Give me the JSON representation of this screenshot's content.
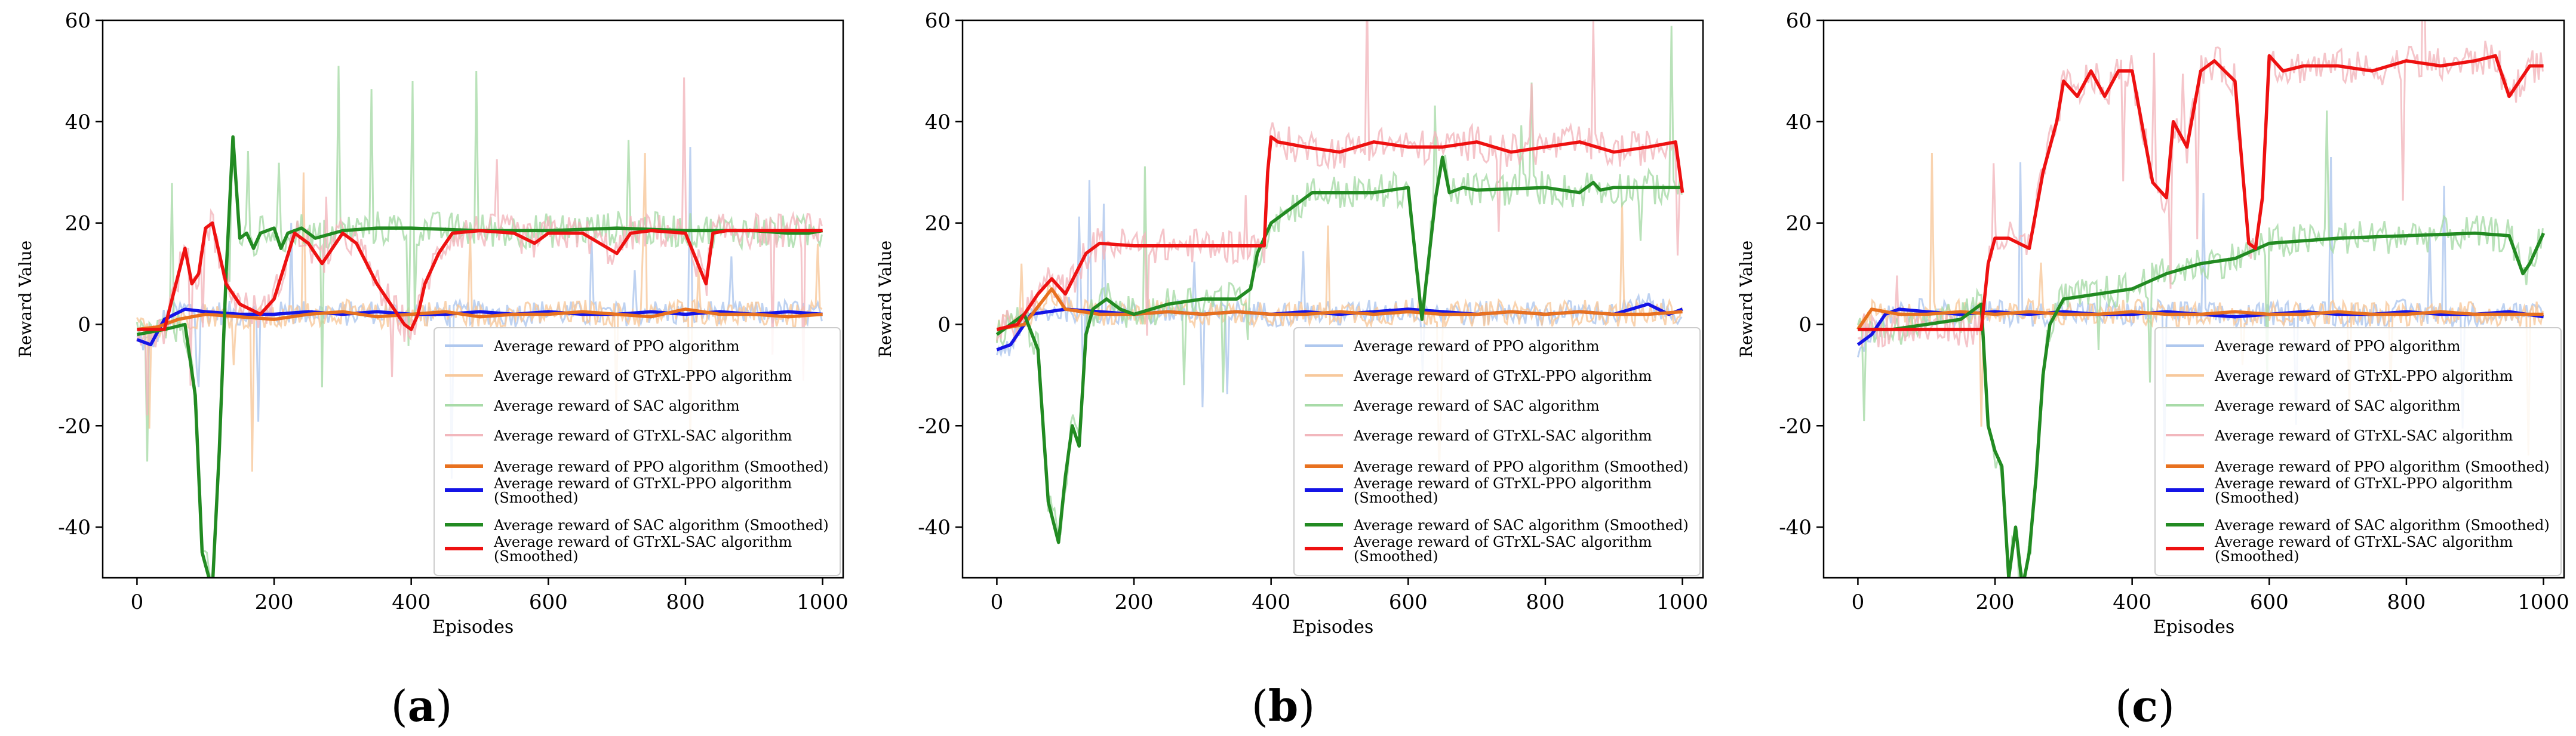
{
  "colors": {
    "ppo": "#e8711f",
    "gtrxl_ppo": "#1414e6",
    "sac": "#228b22",
    "gtrxl_sac": "#ee1111",
    "ppo_raw": "#f7c89b",
    "gtrxl_ppo_raw": "#aec7ee",
    "sac_raw": "#a8dba8",
    "gtrxl_sac_raw": "#f2b7bd"
  },
  "legend_labels": [
    "Average reward of PPO algorithm",
    "Average reward of GTrXL-PPO algorithm",
    "Average reward of SAC algorithm",
    "Average reward of GTrXL-SAC algorithm",
    "Average reward of PPO algorithm (Smoothed)",
    "Average reward of GTrXL-PPO algorithm\n(Smoothed)",
    "Average reward of SAC algorithm (Smoothed)",
    "Average reward of GTrXL-SAC algorithm\n(Smoothed)"
  ],
  "chart_data": [
    {
      "type": "line",
      "caption": "a",
      "xlabel": "Episodes",
      "ylabel": "Reward Value",
      "xlim": [
        -50,
        1030
      ],
      "ylim": [
        -50,
        60
      ],
      "xticks": [
        0,
        200,
        400,
        600,
        800,
        1000
      ],
      "yticks": [
        -40,
        -20,
        0,
        20,
        40,
        60
      ],
      "legend_position": "lower-right",
      "series": [
        {
          "name": "Average reward of PPO algorithm (Smoothed)",
          "key": "ppo",
          "x": [
            0,
            30,
            60,
            100,
            150,
            200,
            250,
            300,
            350,
            400,
            450,
            500,
            550,
            600,
            650,
            700,
            750,
            800,
            850,
            900,
            950,
            1000
          ],
          "y": [
            -1,
            -0.5,
            1,
            2,
            1.5,
            1,
            2,
            2.5,
            1.5,
            2,
            2.5,
            1.5,
            2,
            2,
            2.5,
            2,
            1.5,
            3,
            2,
            2,
            1.5,
            2
          ]
        },
        {
          "name": "Average reward of GTrXL-PPO algorithm (Smoothed)",
          "key": "gtrxl_ppo",
          "x": [
            0,
            20,
            40,
            70,
            100,
            150,
            200,
            250,
            300,
            350,
            400,
            450,
            500,
            550,
            600,
            650,
            700,
            750,
            800,
            850,
            900,
            950,
            1000
          ],
          "y": [
            -3,
            -4,
            1,
            3,
            2.5,
            2,
            2,
            2.5,
            2,
            2.5,
            2,
            2,
            2.5,
            2,
            2.5,
            2,
            2,
            2.5,
            2,
            2.5,
            2,
            2.5,
            2
          ]
        },
        {
          "name": "Average reward of SAC algorithm (Smoothed)",
          "key": "sac",
          "x": [
            0,
            40,
            70,
            85,
            95,
            105,
            110,
            120,
            130,
            140,
            150,
            160,
            170,
            180,
            200,
            210,
            220,
            240,
            260,
            300,
            350,
            400,
            500,
            600,
            700,
            800,
            900,
            950,
            980,
            1000
          ],
          "y": [
            -2,
            -1,
            0,
            -14,
            -45,
            -50,
            -52,
            -25,
            10,
            37,
            17,
            18,
            15,
            18,
            19,
            15,
            18,
            19,
            17,
            18.5,
            19,
            19,
            18.5,
            18.5,
            19,
            18.5,
            18.5,
            18,
            18,
            18.5
          ]
        },
        {
          "name": "Average reward of GTrXL-SAC algorithm (Smoothed)",
          "key": "gtrxl_sac",
          "x": [
            0,
            40,
            70,
            80,
            90,
            100,
            110,
            130,
            150,
            180,
            200,
            230,
            250,
            270,
            300,
            320,
            350,
            370,
            390,
            400,
            410,
            420,
            440,
            460,
            500,
            550,
            580,
            600,
            650,
            700,
            720,
            750,
            800,
            830,
            840,
            860,
            900,
            1000
          ],
          "y": [
            -1,
            -1,
            15,
            8,
            10,
            19,
            20,
            8,
            4,
            2,
            5,
            18,
            16,
            12,
            18,
            16,
            8,
            4,
            0,
            -1,
            2,
            8,
            14,
            18,
            18.5,
            18,
            16,
            18,
            18,
            14,
            18,
            18.5,
            18,
            8,
            18,
            18.5,
            18.5,
            18.5
          ]
        }
      ]
    },
    {
      "type": "line",
      "caption": "b",
      "xlabel": "Episodes",
      "ylabel": "Reward Value",
      "xlim": [
        -50,
        1030
      ],
      "ylim": [
        -50,
        60
      ],
      "xticks": [
        0,
        200,
        400,
        600,
        800,
        1000
      ],
      "yticks": [
        -40,
        -20,
        0,
        20,
        40,
        60
      ],
      "legend_position": "lower-right",
      "series": [
        {
          "name": "Average reward of PPO algorithm (Smoothed)",
          "key": "ppo",
          "x": [
            0,
            40,
            80,
            100,
            150,
            200,
            250,
            300,
            350,
            400,
            450,
            500,
            550,
            600,
            650,
            700,
            750,
            800,
            850,
            900,
            950,
            1000
          ],
          "y": [
            -1,
            0,
            7,
            3,
            2,
            2,
            2.5,
            2,
            2.5,
            2,
            2,
            2.5,
            2,
            2.5,
            2,
            2,
            2.5,
            2,
            2.5,
            2,
            2,
            2.5
          ]
        },
        {
          "name": "Average reward of GTrXL-PPO algorithm (Smoothed)",
          "key": "gtrxl_ppo",
          "x": [
            0,
            20,
            50,
            100,
            150,
            200,
            250,
            300,
            350,
            400,
            450,
            500,
            550,
            600,
            650,
            700,
            750,
            800,
            850,
            900,
            950,
            980,
            1000
          ],
          "y": [
            -5,
            -4,
            2,
            3,
            2.5,
            2,
            2.5,
            2,
            2.5,
            2,
            2.5,
            2,
            2.5,
            3,
            2.5,
            2,
            2.5,
            2,
            2.5,
            2,
            4,
            2,
            3
          ]
        },
        {
          "name": "Average reward of SAC algorithm (Smoothed)",
          "key": "sac",
          "x": [
            0,
            40,
            60,
            75,
            90,
            100,
            110,
            120,
            130,
            140,
            160,
            180,
            200,
            250,
            300,
            350,
            370,
            380,
            400,
            420,
            440,
            460,
            500,
            550,
            600,
            620,
            640,
            650,
            660,
            680,
            700,
            800,
            850,
            870,
            880,
            900,
            1000
          ],
          "y": [
            -2,
            2,
            -5,
            -35,
            -43,
            -30,
            -20,
            -24,
            -2,
            3,
            5,
            3,
            2,
            4,
            5,
            5,
            7,
            14,
            20,
            22,
            24,
            26,
            26,
            26,
            27,
            1,
            25,
            33,
            26,
            27,
            26.5,
            27,
            26,
            28,
            26.5,
            27,
            27
          ]
        },
        {
          "name": "Average reward of GTrXL-SAC algorithm (Smoothed)",
          "key": "gtrxl_sac",
          "x": [
            0,
            30,
            60,
            80,
            100,
            130,
            150,
            200,
            250,
            300,
            350,
            390,
            395,
            400,
            410,
            450,
            500,
            550,
            600,
            650,
            700,
            750,
            800,
            850,
            900,
            950,
            990,
            1000
          ],
          "y": [
            -1,
            0,
            6,
            9,
            6,
            14,
            16,
            15.5,
            15.5,
            15.5,
            15.5,
            15.5,
            30,
            37,
            36,
            35,
            34,
            36,
            35,
            35,
            36,
            34,
            35,
            36,
            34,
            35,
            36,
            26
          ]
        }
      ]
    },
    {
      "type": "line",
      "caption": "c",
      "xlabel": "Episodes",
      "ylabel": "Reward Value",
      "xlim": [
        -50,
        1030
      ],
      "ylim": [
        -50,
        60
      ],
      "xticks": [
        0,
        200,
        400,
        600,
        800,
        1000
      ],
      "yticks": [
        -40,
        -20,
        0,
        20,
        40,
        60
      ],
      "legend_position": "lower-right",
      "series": [
        {
          "name": "Average reward of PPO algorithm (Smoothed)",
          "key": "ppo",
          "x": [
            0,
            20,
            60,
            100,
            150,
            200,
            250,
            300,
            350,
            400,
            450,
            500,
            550,
            600,
            650,
            700,
            750,
            800,
            850,
            900,
            950,
            1000
          ],
          "y": [
            -1,
            3,
            2,
            2,
            2.5,
            2,
            2.5,
            2,
            2,
            2.5,
            2,
            2,
            2.5,
            2,
            2,
            2.5,
            2,
            2,
            2.5,
            2,
            2,
            2
          ]
        },
        {
          "name": "Average reward of GTrXL-PPO algorithm (Smoothed)",
          "key": "gtrxl_ppo",
          "x": [
            0,
            20,
            40,
            60,
            100,
            150,
            200,
            250,
            300,
            350,
            400,
            450,
            500,
            550,
            600,
            650,
            700,
            750,
            800,
            850,
            900,
            950,
            1000
          ],
          "y": [
            -4,
            -2,
            2,
            3,
            2.5,
            2,
            2.5,
            2,
            2.5,
            2,
            2,
            2.5,
            2,
            1.5,
            2,
            2.5,
            2,
            2,
            2.5,
            2,
            2,
            2.5,
            1.5
          ]
        },
        {
          "name": "Average reward of SAC algorithm (Smoothed)",
          "key": "sac",
          "x": [
            0,
            50,
            100,
            150,
            180,
            190,
            200,
            210,
            220,
            230,
            240,
            250,
            260,
            270,
            280,
            300,
            350,
            400,
            450,
            500,
            550,
            600,
            650,
            700,
            800,
            900,
            950,
            970,
            980,
            1000
          ],
          "y": [
            -1,
            -1,
            0,
            1,
            4,
            -20,
            -25,
            -28,
            -50,
            -40,
            -52,
            -45,
            -30,
            -10,
            0,
            5,
            6,
            7,
            10,
            12,
            13,
            16,
            16.5,
            17,
            17.5,
            18,
            17.5,
            10,
            12,
            18
          ]
        },
        {
          "name": "Average reward of GTrXL-SAC algorithm (Smoothed)",
          "key": "gtrxl_sac",
          "x": [
            0,
            50,
            100,
            150,
            180,
            190,
            200,
            220,
            250,
            270,
            290,
            300,
            320,
            340,
            360,
            380,
            400,
            430,
            450,
            460,
            480,
            500,
            520,
            550,
            570,
            580,
            590,
            600,
            620,
            650,
            700,
            750,
            800,
            850,
            900,
            930,
            950,
            980,
            1000
          ],
          "y": [
            -1,
            -1,
            -1,
            -1,
            -1,
            12,
            17,
            17,
            15,
            30,
            40,
            48,
            45,
            50,
            45,
            50,
            50,
            28,
            25,
            40,
            35,
            50,
            52,
            48,
            16,
            15,
            25,
            53,
            50,
            51,
            51,
            50,
            52,
            51,
            52,
            53,
            45,
            51,
            51
          ]
        }
      ]
    }
  ]
}
